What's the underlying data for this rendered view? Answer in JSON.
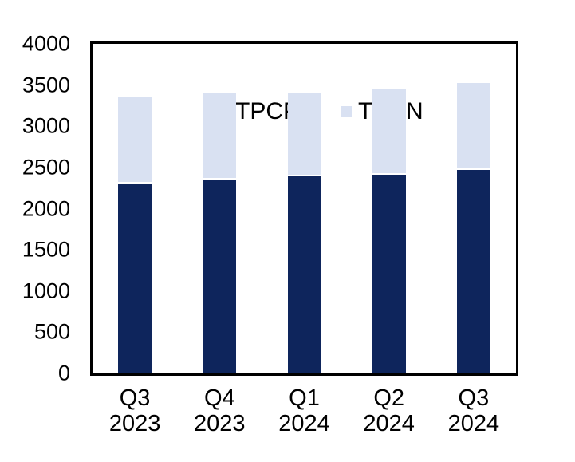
{
  "chart_data": {
    "type": "bar",
    "stacked": true,
    "title": "",
    "xlabel": "",
    "ylabel": "",
    "categories": [
      "Q3\n2023",
      "Q4\n2023",
      "Q1\n2024",
      "Q2\n2024",
      "Q3\n2024"
    ],
    "series": [
      {
        "name": "TPCP",
        "color": "#0e255c",
        "values": [
          2310,
          2350,
          2390,
          2415,
          2470
        ]
      },
      {
        "name": "TPDN",
        "color": "#d9e1f2",
        "values": [
          1020,
          1040,
          1000,
          1010,
          1040
        ]
      }
    ],
    "stacked_totals": [
      3330,
      3390,
      3390,
      3425,
      3510
    ],
    "ylim": [
      0,
      4000
    ],
    "yticks": [
      0,
      500,
      1000,
      1500,
      2000,
      2500,
      3000,
      3500,
      4000
    ],
    "grid": false,
    "legend_position": "top-inside-left",
    "frame_color": "#000000",
    "background_color": "#ffffff",
    "bar_separator_color": "#ffffff"
  }
}
